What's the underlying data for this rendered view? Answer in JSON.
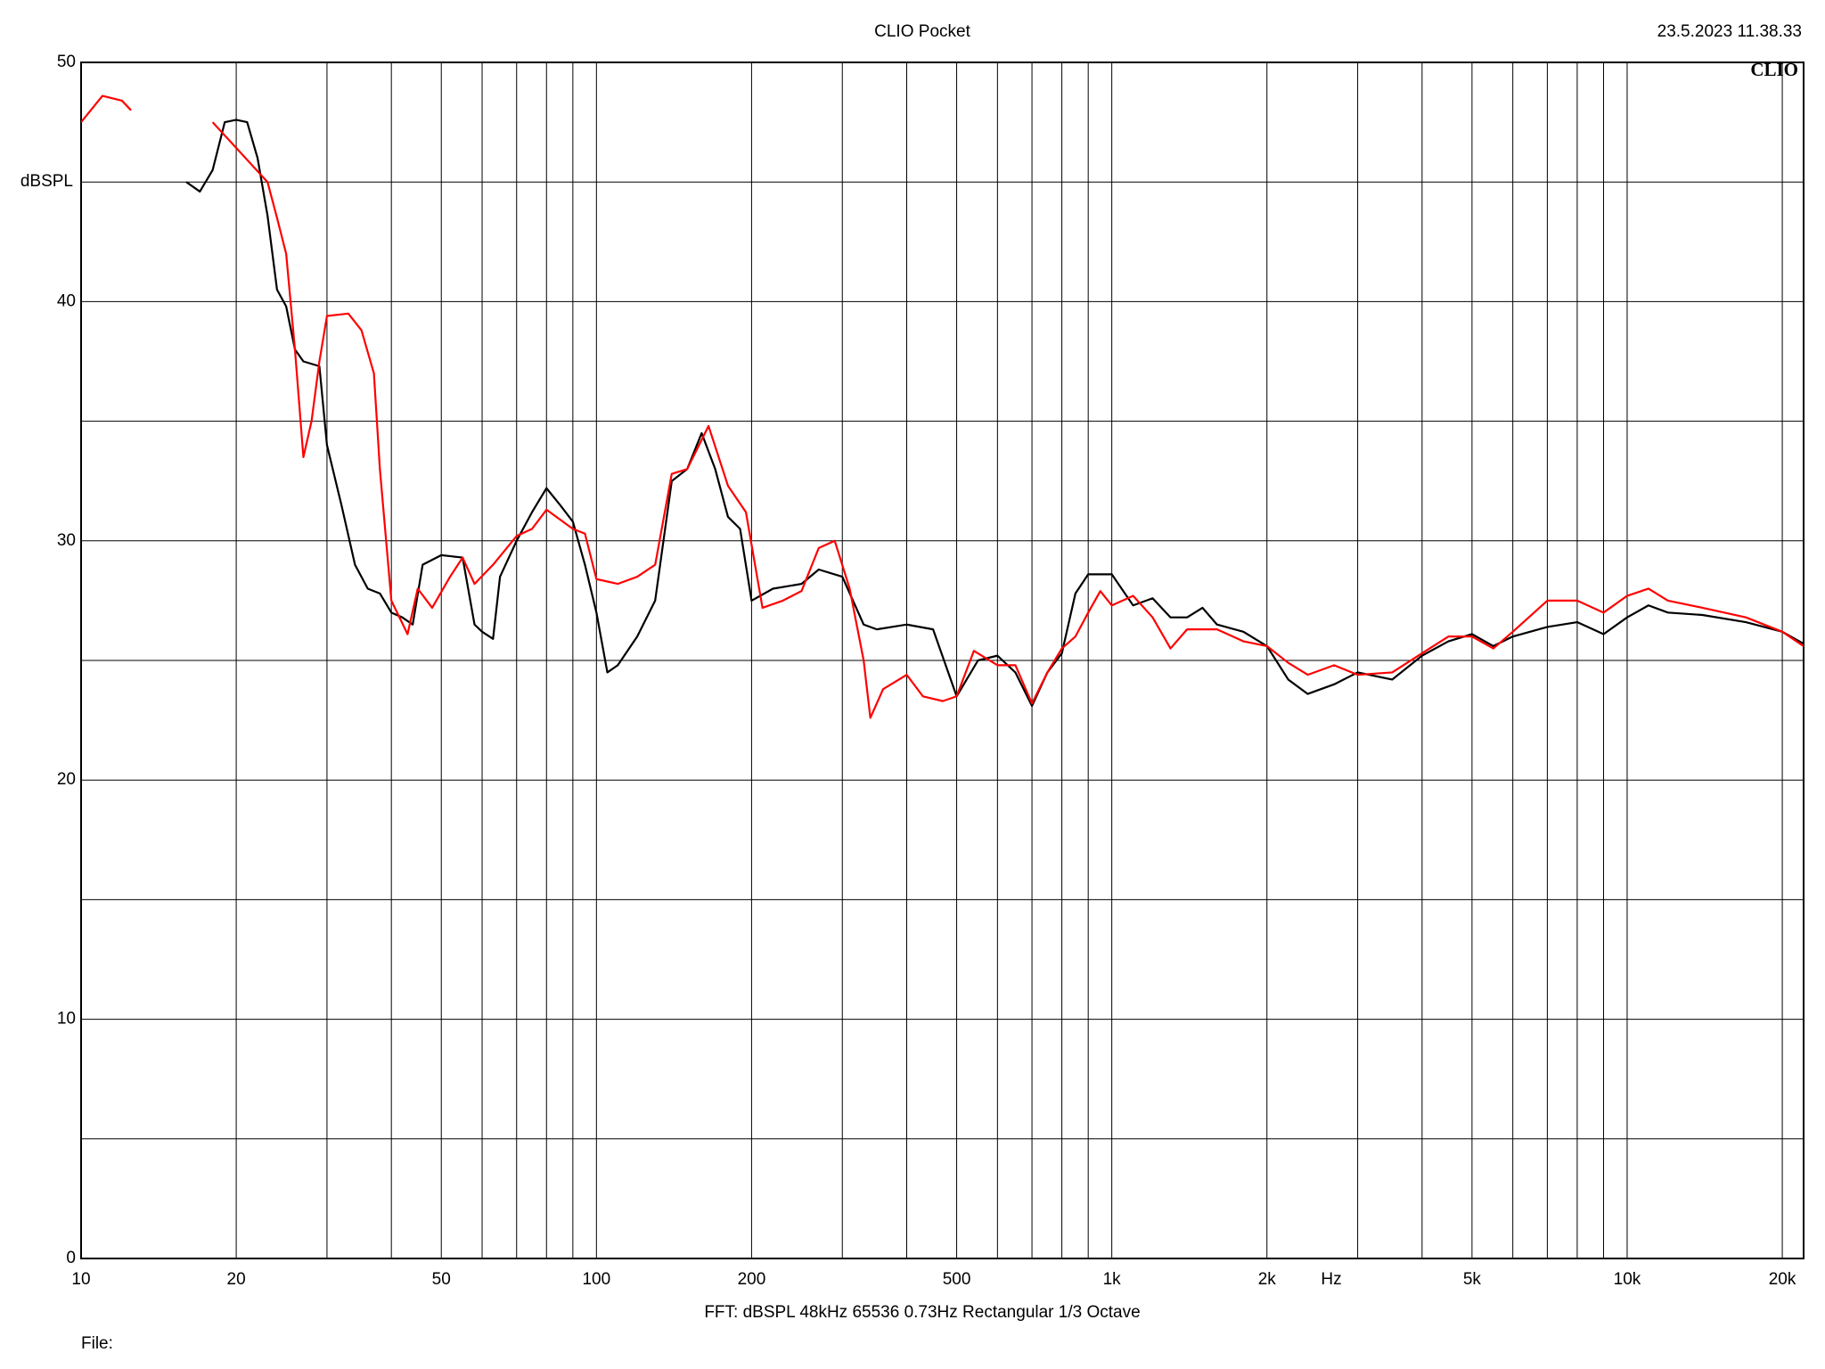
{
  "chart_data": {
    "type": "line",
    "title": "CLIO Pocket",
    "timestamp": "23.5.2023 11.38.33",
    "logo": "CLIO",
    "y_label": "dBSPL",
    "x_label": "Hz",
    "footer": "FFT:  dBSPL  48kHz  65536  0.73Hz  Rectangular  1/3 Octave",
    "file_label": "File:",
    "x_scale": "log",
    "grid": true,
    "xlim": [
      10,
      22000
    ],
    "ylim": [
      0,
      50
    ],
    "yticks": [
      0,
      10,
      20,
      30,
      40,
      50
    ],
    "ygrid_minor": [
      5,
      15,
      25,
      35,
      45
    ],
    "xticks": [
      10,
      20,
      50,
      100,
      200,
      500,
      {
        "value": 1000,
        "label": "1k"
      },
      {
        "value": 2000,
        "label": "2k"
      },
      {
        "value": 5000,
        "label": "5k"
      },
      {
        "value": 10000,
        "label": "10k"
      },
      {
        "value": 20000,
        "label": "20k"
      }
    ],
    "xgrid_minor": [
      30,
      40,
      60,
      70,
      80,
      90,
      300,
      400,
      600,
      700,
      800,
      900,
      3000,
      4000,
      6000,
      7000,
      8000,
      9000
    ],
    "series": [
      {
        "color": "#000000",
        "x": [
          16,
          17,
          18,
          19,
          20,
          21,
          22,
          23,
          24,
          25,
          26,
          27,
          29,
          30,
          32,
          34,
          36,
          38,
          40,
          42,
          44,
          46,
          50,
          55,
          58,
          60,
          63,
          65,
          70,
          75,
          80,
          85,
          90,
          95,
          100,
          105,
          110,
          120,
          130,
          140,
          150,
          160,
          170,
          180,
          190,
          200,
          220,
          250,
          270,
          300,
          330,
          350,
          400,
          450,
          500,
          550,
          600,
          650,
          700,
          750,
          800,
          850,
          900,
          1000,
          1100,
          1200,
          1300,
          1400,
          1500,
          1600,
          1800,
          2000,
          2200,
          2400,
          2700,
          3000,
          3500,
          4000,
          4500,
          5000,
          5500,
          6000,
          7000,
          8000,
          9000,
          10000,
          11000,
          12000,
          14000,
          17000,
          20000,
          22000
        ],
        "values": [
          45,
          44.6,
          45.5,
          47.5,
          47.6,
          47.5,
          46,
          43.6,
          40.5,
          39.8,
          38,
          37.5,
          37.3,
          34,
          31.5,
          29,
          28,
          27.8,
          27,
          26.8,
          26.5,
          29,
          29.4,
          29.3,
          26.5,
          26.2,
          25.9,
          28.5,
          30,
          31.2,
          32.2,
          31.5,
          30.8,
          29,
          27,
          24.5,
          24.8,
          26,
          27.5,
          32.5,
          33,
          34.5,
          33,
          31,
          30.5,
          27.5,
          28,
          28.2,
          28.8,
          28.5,
          26.5,
          26.3,
          26.5,
          26.3,
          23.5,
          25,
          25.2,
          24.5,
          23.1,
          24.5,
          25.3,
          27.8,
          28.6,
          28.6,
          27.3,
          27.6,
          26.8,
          26.8,
          27.2,
          26.5,
          26.2,
          25.6,
          24.2,
          23.6,
          24,
          24.5,
          24.2,
          25.2,
          25.8,
          26.1,
          25.6,
          26,
          26.4,
          26.6,
          26.1,
          26.8,
          27.3,
          27,
          26.9,
          26.6,
          26.2,
          25.7
        ]
      },
      {
        "color": "#ff0000",
        "x": [
          10,
          11,
          12,
          12.5,
          17,
          18,
          23,
          24,
          25,
          26,
          27,
          28,
          29,
          30,
          33,
          35,
          37,
          38,
          40,
          43,
          45,
          48,
          52,
          55,
          58,
          63,
          70,
          75,
          80,
          90,
          95,
          100,
          110,
          120,
          130,
          140,
          150,
          165,
          180,
          195,
          210,
          230,
          250,
          270,
          290,
          310,
          330,
          340,
          360,
          400,
          430,
          470,
          500,
          540,
          600,
          650,
          700,
          750,
          800,
          850,
          900,
          950,
          1000,
          1100,
          1200,
          1300,
          1400,
          1600,
          1800,
          2000,
          2200,
          2400,
          2700,
          3000,
          3500,
          4000,
          4500,
          5000,
          5500,
          6000,
          7000,
          8000,
          9000,
          10000,
          11000,
          12000,
          14000,
          17000,
          20000,
          22000
        ],
        "values": [
          47.5,
          48.6,
          48.4,
          48,
          null,
          47.5,
          45,
          43.5,
          42,
          38,
          33.5,
          35,
          37.5,
          39.4,
          39.5,
          38.8,
          37,
          33,
          27.5,
          26.1,
          28,
          27.2,
          28.5,
          29.3,
          28.2,
          29,
          30.2,
          30.5,
          31.3,
          30.5,
          30.3,
          28.4,
          28.2,
          28.5,
          29,
          32.8,
          33,
          34.8,
          32.3,
          31.2,
          27.2,
          27.5,
          27.9,
          29.7,
          30,
          28,
          25,
          22.6,
          23.8,
          24.4,
          23.5,
          23.3,
          23.5,
          25.4,
          24.8,
          24.8,
          23.2,
          24.5,
          25.5,
          26,
          27,
          27.9,
          27.3,
          27.7,
          26.8,
          25.5,
          26.3,
          26.3,
          25.8,
          25.6,
          24.9,
          24.4,
          24.8,
          24.4,
          24.5,
          25.3,
          26,
          26,
          25.5,
          26.2,
          27.5,
          27.5,
          27,
          27.7,
          28,
          27.5,
          27.2,
          26.8,
          26.2,
          25.6
        ]
      }
    ]
  }
}
